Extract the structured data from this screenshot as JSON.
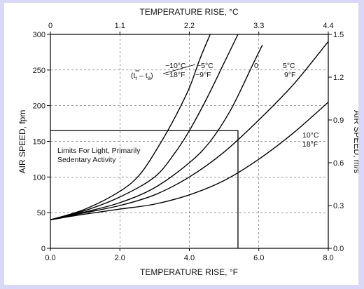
{
  "chart_data": {
    "type": "line",
    "title": "",
    "axes": {
      "x_bottom": {
        "label": "TEMPERATURE RISE, °F",
        "range": [
          0,
          8
        ],
        "ticks": [
          "0.0",
          "2.0",
          "4.0",
          "6.0",
          "8.0"
        ]
      },
      "x_top": {
        "label": "TEMPERATURE RISE, °C",
        "range": [
          0,
          4.4
        ],
        "ticks": [
          "0",
          "1.1",
          "2.2",
          "3.3",
          "4.4"
        ]
      },
      "y_left": {
        "label": "AIR SPEED, fpm",
        "range": [
          0,
          300
        ],
        "ticks": [
          "0",
          "50",
          "100",
          "150",
          "200",
          "250",
          "300"
        ]
      },
      "y_right": {
        "label": "AIR SPEED, m/s",
        "range": [
          0,
          1.5
        ],
        "ticks": [
          "0.0",
          "0.3",
          "0.6",
          "0.9",
          "1.2",
          "1.5"
        ]
      }
    },
    "grid": true,
    "series": [
      {
        "label_c": "−10°C",
        "label_f": "−18°F",
        "x": [
          0,
          1,
          2,
          2.6,
          3.2,
          3.6,
          4.0,
          4.3,
          4.6
        ],
        "y": [
          40,
          55,
          80,
          105,
          150,
          185,
          225,
          265,
          300
        ]
      },
      {
        "label_c": "−5°C",
        "label_f": "−9°F",
        "x": [
          0,
          1,
          2,
          3,
          3.6,
          4.0,
          4.5,
          5.0,
          5.4
        ],
        "y": [
          40,
          53,
          72,
          100,
          135,
          165,
          210,
          260,
          300
        ]
      },
      {
        "label_c": "0",
        "label_f": "",
        "x": [
          0,
          1,
          2,
          3,
          4,
          4.6,
          5.2,
          5.8,
          6.1
        ],
        "y": [
          40,
          51,
          64,
          85,
          120,
          150,
          195,
          255,
          285
        ]
      },
      {
        "label_c": "5°C",
        "label_f": "9°F",
        "x": [
          0,
          1,
          2,
          3,
          4,
          5,
          6,
          7,
          8
        ],
        "y": [
          40,
          50,
          60,
          75,
          100,
          135,
          180,
          230,
          290
        ]
      },
      {
        "label_c": "10°C",
        "label_f": "18°F",
        "x": [
          0,
          1,
          2,
          3,
          4,
          5,
          6,
          7,
          8
        ],
        "y": [
          40,
          48,
          55,
          62,
          75,
          95,
          125,
          162,
          205
        ]
      }
    ],
    "notation": [
      "(t",
      "r",
      " – t",
      "a",
      ")"
    ],
    "limit_box": {
      "x_max_f": 5.4,
      "y_max_fpm": 165,
      "label_line1": "Limits For Light, Primarily",
      "label_line2": "Sedentary Activity"
    }
  }
}
